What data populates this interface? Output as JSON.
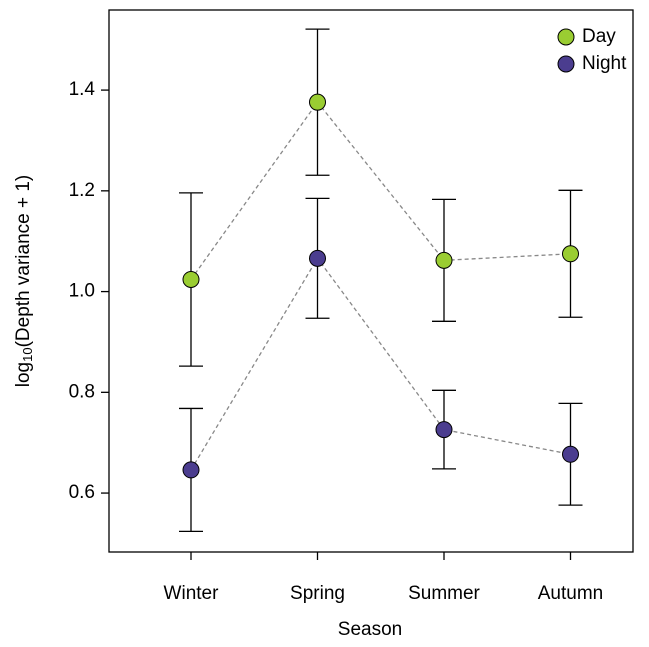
{
  "chart_data": {
    "type": "errorbar",
    "x_label": "Season",
    "y_label": [
      "log",
      "10",
      "(Depth variance + 1)"
    ],
    "categories": [
      "Winter",
      "Spring",
      "Summer",
      "Autumn"
    ],
    "series": [
      {
        "name": "Day",
        "color": "#9acd32",
        "values": [
          1.024,
          1.376,
          1.062,
          1.075
        ],
        "errors": [
          0.172,
          0.145,
          0.121,
          0.126
        ]
      },
      {
        "name": "Night",
        "color": "#4b3d8f",
        "values": [
          0.646,
          1.066,
          0.726,
          0.677
        ],
        "errors": [
          0.122,
          0.119,
          0.078,
          0.101
        ]
      }
    ],
    "ylim": [
      0.483,
      1.559
    ],
    "yticks": [
      0.6,
      0.8,
      {
        "value": 1,
        "label": "1.0"
      },
      1.2,
      1.4
    ],
    "legend": "top-right",
    "connect": true
  }
}
